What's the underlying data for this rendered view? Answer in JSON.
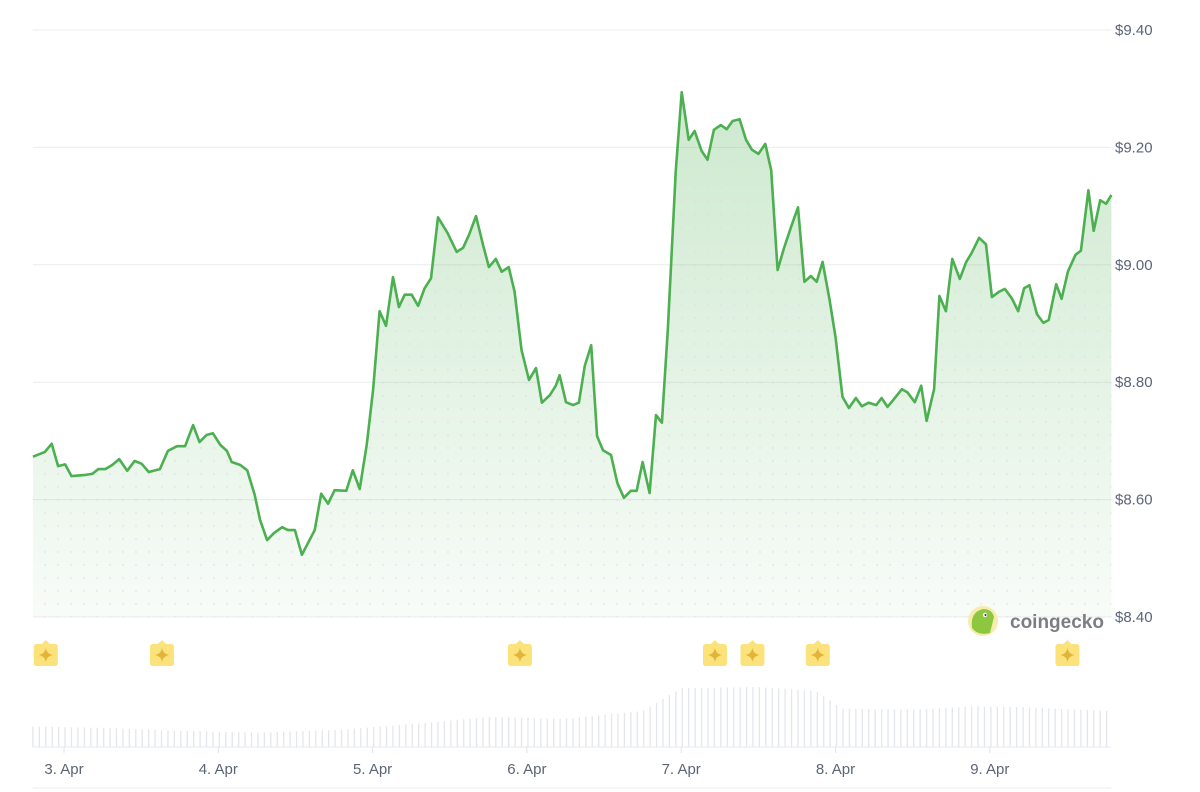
{
  "chart_data": {
    "type": "area",
    "title": "",
    "xlabel": "",
    "ylabel": "",
    "y_axis_position": "right",
    "ylim": [
      8.4,
      9.4
    ],
    "y_ticks": [
      "$8.40",
      "$8.60",
      "$8.80",
      "$9.00",
      "$9.20",
      "$9.40"
    ],
    "y_tick_values": [
      8.4,
      8.6,
      8.8,
      9.0,
      9.2,
      9.4
    ],
    "x_ticks": [
      "3. Apr",
      "4. Apr",
      "5. Apr",
      "6. Apr",
      "7. Apr",
      "8. Apr",
      "9. Apr"
    ],
    "x_tick_dates": [
      "04-03 00:00",
      "04-04 00:00",
      "04-05 00:00",
      "04-06 00:00",
      "04-07 00:00",
      "04-08 00:00",
      "04-09 00:00"
    ],
    "grid": true,
    "colors": {
      "line": "#4caf50",
      "fill": "#4caf50",
      "volume": "#e3e6ea",
      "event": "#fbe27a",
      "event_star": "#e2b53a",
      "grid": "#ececec",
      "tick_text": "#5b6577"
    },
    "series": [
      {
        "points": [
          [
            "04-02 19:10",
            8.673
          ],
          [
            "04-02 21:00",
            8.681
          ],
          [
            "04-02 22:05",
            8.695
          ],
          [
            "04-02 23:05",
            8.657
          ],
          [
            "04-03 00:10",
            8.66
          ],
          [
            "04-03 01:10",
            8.64
          ],
          [
            "04-03 03:20",
            8.642
          ],
          [
            "04-03 04:25",
            8.644
          ],
          [
            "04-03 05:20",
            8.652
          ],
          [
            "04-03 06:25",
            8.652
          ],
          [
            "04-03 07:30",
            8.659
          ],
          [
            "04-03 08:35",
            8.669
          ],
          [
            "04-03 09:50",
            8.649
          ],
          [
            "04-03 11:00",
            8.666
          ],
          [
            "04-03 12:05",
            8.661
          ],
          [
            "04-03 13:10",
            8.647
          ],
          [
            "04-03 14:55",
            8.652
          ],
          [
            "04-03 16:10",
            8.683
          ],
          [
            "04-03 17:35",
            8.691
          ],
          [
            "04-03 18:50",
            8.691
          ],
          [
            "04-03 20:05",
            8.727
          ],
          [
            "04-03 21:05",
            8.698
          ],
          [
            "04-03 22:10",
            8.71
          ],
          [
            "04-03 23:10",
            8.713
          ],
          [
            "04-04 00:20",
            8.693
          ],
          [
            "04-04 01:20",
            8.683
          ],
          [
            "04-04 02:05",
            8.664
          ],
          [
            "04-04 03:25",
            8.659
          ],
          [
            "04-04 04:30",
            8.65
          ],
          [
            "04-04 05:40",
            8.608
          ],
          [
            "04-04 06:30",
            8.565
          ],
          [
            "04-04 07:35",
            8.531
          ],
          [
            "04-04 08:40",
            8.543
          ],
          [
            "04-04 09:55",
            8.553
          ],
          [
            "04-04 10:50",
            8.548
          ],
          [
            "04-04 11:55",
            8.548
          ],
          [
            "04-04 13:00",
            8.506
          ],
          [
            "04-04 15:00",
            8.548
          ],
          [
            "04-04 16:00",
            8.61
          ],
          [
            "04-04 17:05",
            8.593
          ],
          [
            "04-04 18:05",
            8.616
          ],
          [
            "04-04 19:55",
            8.615
          ],
          [
            "04-04 20:55",
            8.65
          ],
          [
            "04-04 22:00",
            8.618
          ],
          [
            "04-04 23:05",
            8.693
          ],
          [
            "04-05 00:05",
            8.787
          ],
          [
            "04-05 01:05",
            8.921
          ],
          [
            "04-05 02:05",
            8.896
          ],
          [
            "04-05 03:10",
            8.979
          ],
          [
            "04-05 04:05",
            8.928
          ],
          [
            "04-05 05:00",
            8.949
          ],
          [
            "04-05 06:05",
            8.949
          ],
          [
            "04-05 07:05",
            8.93
          ],
          [
            "04-05 08:05",
            8.96
          ],
          [
            "04-05 09:05",
            8.977
          ],
          [
            "04-05 10:10",
            9.081
          ],
          [
            "04-05 11:40",
            9.054
          ],
          [
            "04-05 13:05",
            9.022
          ],
          [
            "04-05 14:05",
            9.029
          ],
          [
            "04-05 15:00",
            9.051
          ],
          [
            "04-05 16:05",
            9.083
          ],
          [
            "04-05 17:10",
            9.034
          ],
          [
            "04-05 18:05",
            8.996
          ],
          [
            "04-05 19:10",
            9.01
          ],
          [
            "04-05 20:05",
            8.988
          ],
          [
            "04-05 21:10",
            8.996
          ],
          [
            "04-05 22:05",
            8.954
          ],
          [
            "04-05 23:10",
            8.855
          ],
          [
            "04-06 00:20",
            8.804
          ],
          [
            "04-06 01:25",
            8.824
          ],
          [
            "04-06 02:20",
            8.765
          ],
          [
            "04-06 03:35",
            8.778
          ],
          [
            "04-06 04:30",
            8.794
          ],
          [
            "04-06 05:05",
            8.812
          ],
          [
            "04-06 06:05",
            8.766
          ],
          [
            "04-06 07:10",
            8.761
          ],
          [
            "04-06 08:05",
            8.765
          ],
          [
            "04-06 09:00",
            8.828
          ],
          [
            "04-06 10:00",
            8.863
          ],
          [
            "04-06 10:55",
            8.708
          ],
          [
            "04-06 11:50",
            8.684
          ],
          [
            "04-06 13:05",
            8.676
          ],
          [
            "04-06 14:05",
            8.628
          ],
          [
            "04-06 15:05",
            8.603
          ],
          [
            "04-06 16:10",
            8.615
          ],
          [
            "04-06 17:05",
            8.615
          ],
          [
            "04-06 18:00",
            8.664
          ],
          [
            "04-06 19:05",
            8.611
          ],
          [
            "04-06 20:05",
            8.744
          ],
          [
            "04-06 21:00",
            8.731
          ],
          [
            "04-06 21:55",
            8.889
          ],
          [
            "04-06 23:10",
            9.161
          ],
          [
            "04-07 00:05",
            9.294
          ],
          [
            "04-07 01:10",
            9.213
          ],
          [
            "04-07 02:05",
            9.228
          ],
          [
            "04-07 03:10",
            9.194
          ],
          [
            "04-07 04:05",
            9.179
          ],
          [
            "04-07 05:05",
            9.23
          ],
          [
            "04-07 06:10",
            9.238
          ],
          [
            "04-07 07:05",
            9.231
          ],
          [
            "04-07 08:00",
            9.245
          ],
          [
            "04-07 09:05",
            9.248
          ],
          [
            "04-07 10:05",
            9.213
          ],
          [
            "04-07 11:00",
            9.196
          ],
          [
            "04-07 12:00",
            9.189
          ],
          [
            "04-07 13:05",
            9.206
          ],
          [
            "04-07 14:00",
            9.161
          ],
          [
            "04-07 15:00",
            8.991
          ],
          [
            "04-07 16:00",
            9.029
          ],
          [
            "04-07 17:05",
            9.064
          ],
          [
            "04-07 18:10",
            9.098
          ],
          [
            "04-07 19:10",
            8.971
          ],
          [
            "04-07 20:10",
            8.981
          ],
          [
            "04-07 21:05",
            8.971
          ],
          [
            "04-07 22:00",
            9.005
          ],
          [
            "04-07 23:05",
            8.94
          ],
          [
            "04-08 00:00",
            8.877
          ],
          [
            "04-08 01:05",
            8.775
          ],
          [
            "04-08 02:05",
            8.756
          ],
          [
            "04-08 03:10",
            8.773
          ],
          [
            "04-08 04:05",
            8.759
          ],
          [
            "04-08 05:10",
            8.765
          ],
          [
            "04-08 06:20",
            8.761
          ],
          [
            "04-08 07:10",
            8.773
          ],
          [
            "04-08 08:05",
            8.758
          ],
          [
            "04-08 09:10",
            8.772
          ],
          [
            "04-08 10:20",
            8.788
          ],
          [
            "04-08 11:10",
            8.783
          ],
          [
            "04-08 12:20",
            8.766
          ],
          [
            "04-08 13:20",
            8.794
          ],
          [
            "04-08 14:10",
            8.734
          ],
          [
            "04-08 15:20",
            8.788
          ],
          [
            "04-08 16:10",
            8.947
          ],
          [
            "04-08 17:10",
            8.921
          ],
          [
            "04-08 18:10",
            9.01
          ],
          [
            "04-08 19:20",
            8.976
          ],
          [
            "04-08 20:20",
            9.005
          ],
          [
            "04-08 21:10",
            9.02
          ],
          [
            "04-08 22:20",
            9.046
          ],
          [
            "04-08 23:25",
            9.035
          ],
          [
            "04-09 00:20",
            8.945
          ],
          [
            "04-09 01:25",
            8.954
          ],
          [
            "04-09 02:20",
            8.959
          ],
          [
            "04-09 03:25",
            8.943
          ],
          [
            "04-09 04:25",
            8.921
          ],
          [
            "04-09 05:20",
            8.96
          ],
          [
            "04-09 06:10",
            8.965
          ],
          [
            "04-09 07:20",
            8.916
          ],
          [
            "04-09 08:20",
            8.901
          ],
          [
            "04-09 09:10",
            8.906
          ],
          [
            "04-09 10:20",
            8.967
          ],
          [
            "04-09 11:10",
            8.942
          ],
          [
            "04-09 12:10",
            8.989
          ],
          [
            "04-09 13:20",
            9.017
          ],
          [
            "04-09 14:10",
            9.024
          ],
          [
            "04-09 15:20",
            9.127
          ],
          [
            "04-09 16:10",
            9.058
          ],
          [
            "04-09 17:10",
            9.11
          ],
          [
            "04-09 18:05",
            9.104
          ],
          [
            "04-09 18:55",
            9.119
          ]
        ]
      }
    ],
    "volume_relative": [
      [
        "04-02 19:10",
        0.34
      ],
      [
        "04-03 06:00",
        0.32
      ],
      [
        "04-03 18:00",
        0.27
      ],
      [
        "04-04 06:00",
        0.24
      ],
      [
        "04-04 18:00",
        0.28
      ],
      [
        "04-05 06:00",
        0.38
      ],
      [
        "04-05 18:00",
        0.5
      ],
      [
        "04-06 06:00",
        0.47
      ],
      [
        "04-06 18:00",
        0.6
      ],
      [
        "04-07 00:00",
        0.98
      ],
      [
        "04-07 12:00",
        1.0
      ],
      [
        "04-07 21:00",
        0.93
      ],
      [
        "04-08 01:00",
        0.64
      ],
      [
        "04-08 12:00",
        0.62
      ],
      [
        "04-08 22:00",
        0.68
      ],
      [
        "04-09 06:00",
        0.66
      ],
      [
        "04-09 18:55",
        0.6
      ]
    ],
    "event_markers": [
      "04-02 21:10",
      "04-03 15:15",
      "04-05 22:55",
      "04-07 05:15",
      "04-07 11:05",
      "04-07 21:15",
      "04-09 12:05"
    ]
  },
  "watermark": {
    "text": "coingecko"
  }
}
